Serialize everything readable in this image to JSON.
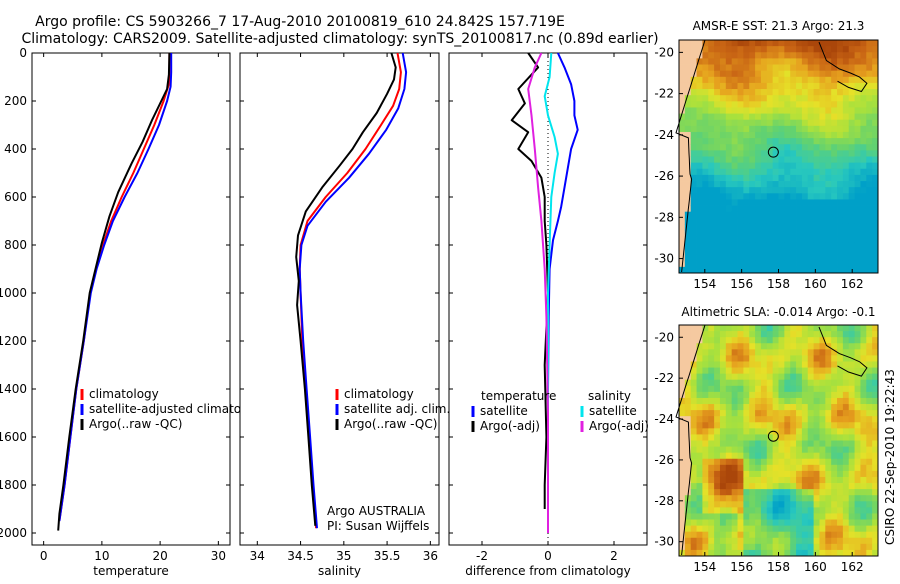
{
  "header": {
    "line1": "Argo profile: CS 5903266_7 17-Aug-2010 20100819_610 24.842S 157.719E",
    "line2": "Climatology: CARS2009. Satellite-adjusted climatology: synTS_20100817.nc (0.89d earlier)"
  },
  "side_label": "CSIRO  22-Sep-2010 19:22:43",
  "chart_data": [
    {
      "id": "temperature",
      "type": "line",
      "xlabel": "temperature",
      "xlim": [
        -2,
        32
      ],
      "ylim": [
        2050,
        0
      ],
      "xticks": [
        0,
        10,
        20,
        30
      ],
      "yticks": [
        0,
        200,
        400,
        600,
        800,
        1000,
        1200,
        1400,
        1600,
        1800,
        2000
      ],
      "legend": {
        "position": "lower-left",
        "entries": [
          {
            "label": "climatology",
            "color": "#ff0000"
          },
          {
            "label": "satellite-adjusted climatology",
            "color": "#0000ff"
          },
          {
            "label": "Argo(..raw -QC)",
            "color": "#000000"
          }
        ]
      },
      "series": [
        {
          "name": "climatology",
          "color": "#ff0000",
          "width": 2,
          "points": [
            [
              21.6,
              0
            ],
            [
              21.6,
              80
            ],
            [
              21.5,
              130
            ],
            [
              20.6,
              200
            ],
            [
              19.0,
              300
            ],
            [
              17.2,
              400
            ],
            [
              15.4,
              500
            ],
            [
              13.4,
              600
            ],
            [
              11.6,
              700
            ],
            [
              10.2,
              800
            ],
            [
              9.0,
              900
            ],
            [
              8.0,
              1000
            ],
            [
              6.9,
              1200
            ],
            [
              5.6,
              1400
            ],
            [
              4.6,
              1600
            ],
            [
              3.6,
              1800
            ],
            [
              2.7,
              1950
            ]
          ]
        },
        {
          "name": "satellite-adjusted climatology",
          "color": "#0000ff",
          "width": 2,
          "points": [
            [
              21.9,
              0
            ],
            [
              21.9,
              80
            ],
            [
              21.8,
              140
            ],
            [
              21.2,
              200
            ],
            [
              19.8,
              300
            ],
            [
              18.0,
              400
            ],
            [
              16.1,
              500
            ],
            [
              13.9,
              600
            ],
            [
              11.9,
              700
            ],
            [
              10.4,
              800
            ],
            [
              9.1,
              900
            ],
            [
              8.1,
              1000
            ],
            [
              6.9,
              1200
            ],
            [
              5.6,
              1400
            ],
            [
              4.6,
              1600
            ],
            [
              3.6,
              1800
            ],
            [
              2.7,
              1950
            ]
          ]
        },
        {
          "name": "Argo(..raw -QC)",
          "color": "#000000",
          "width": 2,
          "points": [
            [
              21.6,
              0
            ],
            [
              21.5,
              90
            ],
            [
              21.2,
              150
            ],
            [
              20.2,
              200
            ],
            [
              18.6,
              280
            ],
            [
              17.0,
              370
            ],
            [
              15.1,
              460
            ],
            [
              12.8,
              580
            ],
            [
              11.3,
              680
            ],
            [
              10.0,
              790
            ],
            [
              8.9,
              900
            ],
            [
              7.9,
              1000
            ],
            [
              6.8,
              1200
            ],
            [
              5.5,
              1400
            ],
            [
              4.4,
              1600
            ],
            [
              3.4,
              1800
            ],
            [
              2.7,
              1920
            ],
            [
              2.5,
              1990
            ]
          ]
        }
      ]
    },
    {
      "id": "salinity",
      "type": "line",
      "xlabel": "salinity",
      "xlim": [
        33.8,
        36.1
      ],
      "ylim": [
        2050,
        0
      ],
      "xticks": [
        34,
        34.5,
        35,
        35.5,
        36
      ],
      "yticks": [
        0,
        200,
        400,
        600,
        800,
        1000,
        1200,
        1400,
        1600,
        1800,
        2000
      ],
      "legend": {
        "position": "lower-right",
        "entries": [
          {
            "label": "climatology",
            "color": "#ff0000"
          },
          {
            "label": "satellite adj. clim.",
            "color": "#0000ff"
          },
          {
            "label": "Argo(..raw -QC)",
            "color": "#000000"
          }
        ]
      },
      "annotations": [
        "Argo AUSTRALIA",
        "PI: Susan Wijffels"
      ],
      "series": [
        {
          "name": "climatology",
          "color": "#ff0000",
          "width": 2,
          "points": [
            [
              35.62,
              0
            ],
            [
              35.66,
              80
            ],
            [
              35.64,
              150
            ],
            [
              35.57,
              220
            ],
            [
              35.43,
              300
            ],
            [
              35.25,
              400
            ],
            [
              35.04,
              500
            ],
            [
              34.79,
              600
            ],
            [
              34.58,
              700
            ],
            [
              34.5,
              800
            ],
            [
              34.49,
              900
            ],
            [
              34.5,
              1000
            ],
            [
              34.52,
              1200
            ],
            [
              34.56,
              1400
            ],
            [
              34.6,
              1600
            ],
            [
              34.64,
              1800
            ],
            [
              34.68,
              1980
            ]
          ]
        },
        {
          "name": "satellite adj. clim.",
          "color": "#0000ff",
          "width": 2,
          "points": [
            [
              35.68,
              0
            ],
            [
              35.72,
              80
            ],
            [
              35.7,
              150
            ],
            [
              35.63,
              230
            ],
            [
              35.49,
              320
            ],
            [
              35.29,
              420
            ],
            [
              35.06,
              520
            ],
            [
              34.79,
              620
            ],
            [
              34.58,
              720
            ],
            [
              34.51,
              800
            ],
            [
              34.49,
              900
            ],
            [
              34.5,
              1000
            ],
            [
              34.53,
              1200
            ],
            [
              34.57,
              1400
            ],
            [
              34.61,
              1600
            ],
            [
              34.65,
              1800
            ],
            [
              34.69,
              1980
            ]
          ]
        },
        {
          "name": "Argo(..raw -QC)",
          "color": "#000000",
          "width": 2,
          "points": [
            [
              35.55,
              0
            ],
            [
              35.6,
              60
            ],
            [
              35.58,
              110
            ],
            [
              35.5,
              170
            ],
            [
              35.38,
              250
            ],
            [
              35.22,
              330
            ],
            [
              35.1,
              400
            ],
            [
              34.95,
              470
            ],
            [
              34.75,
              560
            ],
            [
              34.56,
              660
            ],
            [
              34.47,
              760
            ],
            [
              34.45,
              850
            ],
            [
              34.48,
              950
            ],
            [
              34.46,
              1050
            ],
            [
              34.5,
              1200
            ],
            [
              34.55,
              1400
            ],
            [
              34.59,
              1600
            ],
            [
              34.63,
              1800
            ],
            [
              34.67,
              1970
            ]
          ]
        }
      ]
    },
    {
      "id": "difference",
      "type": "line",
      "xlabel": "difference from climatology",
      "xlim": [
        -3,
        3
      ],
      "ylim": [
        2050,
        0
      ],
      "xticks": [
        -2,
        0,
        2
      ],
      "yticks": [
        0,
        200,
        400,
        600,
        800,
        1000,
        1200,
        1400,
        1600,
        1800,
        2000
      ],
      "legend": {
        "position": "lower",
        "columns": [
          {
            "title": "temperature",
            "entries": [
              {
                "label": "satellite",
                "color": "#0000ff"
              },
              {
                "label": "Argo(-adj)",
                "color": "#000000"
              }
            ]
          },
          {
            "title": "salinity",
            "entries": [
              {
                "label": "satellite",
                "color": "#00e5ee"
              },
              {
                "label": "Argo(-adj)",
                "color": "#e020e0"
              }
            ]
          }
        ]
      },
      "series": [
        {
          "name": "temperature satellite",
          "color": "#0000ff",
          "width": 2,
          "points": [
            [
              0.3,
              0
            ],
            [
              0.5,
              60
            ],
            [
              0.7,
              130
            ],
            [
              0.8,
              200
            ],
            [
              0.8,
              260
            ],
            [
              0.9,
              320
            ],
            [
              0.7,
              400
            ],
            [
              0.6,
              480
            ],
            [
              0.5,
              560
            ],
            [
              0.4,
              640
            ],
            [
              0.3,
              700
            ],
            [
              0.15,
              780
            ],
            [
              0.05,
              900
            ],
            [
              0.02,
              1100
            ],
            [
              0.0,
              1400
            ],
            [
              0.0,
              2000
            ]
          ]
        },
        {
          "name": "temperature Argo(-adj)",
          "color": "#000000",
          "width": 2,
          "points": [
            [
              -0.6,
              0
            ],
            [
              -0.3,
              60
            ],
            [
              -0.9,
              150
            ],
            [
              -0.7,
              210
            ],
            [
              -1.1,
              280
            ],
            [
              -0.6,
              330
            ],
            [
              -0.9,
              400
            ],
            [
              -0.5,
              450
            ],
            [
              -0.2,
              520
            ],
            [
              -0.1,
              600
            ],
            [
              -0.1,
              700
            ],
            [
              -0.05,
              800
            ],
            [
              0.0,
              1000
            ],
            [
              -0.1,
              1300
            ],
            [
              -0.05,
              1600
            ],
            [
              -0.1,
              1800
            ],
            [
              -0.1,
              1900
            ]
          ]
        },
        {
          "name": "salinity satellite",
          "color": "#00e5ee",
          "width": 2,
          "points": [
            [
              0.1,
              0
            ],
            [
              0.05,
              100
            ],
            [
              -0.1,
              180
            ],
            [
              0.0,
              260
            ],
            [
              0.2,
              350
            ],
            [
              0.3,
              420
            ],
            [
              0.2,
              500
            ],
            [
              0.1,
              600
            ],
            [
              0.05,
              800
            ],
            [
              0.0,
              1000
            ],
            [
              0.0,
              2000
            ]
          ]
        },
        {
          "name": "salinity Argo(-adj)",
          "color": "#e020e0",
          "width": 2,
          "points": [
            [
              -0.2,
              0
            ],
            [
              -0.4,
              60
            ],
            [
              -0.6,
              150
            ],
            [
              -0.5,
              260
            ],
            [
              -0.4,
              400
            ],
            [
              -0.3,
              560
            ],
            [
              -0.2,
              700
            ],
            [
              -0.1,
              900
            ],
            [
              -0.05,
              1100
            ],
            [
              0.0,
              1500
            ],
            [
              0.0,
              2000
            ]
          ]
        }
      ]
    },
    {
      "id": "sst_map",
      "type": "heatmap",
      "title": "AMSR-E SST: 21.3  Argo: 21.3",
      "xlim": [
        152.6,
        163.4
      ],
      "ylim": [
        -30.7,
        -19.4
      ],
      "xticks": [
        154,
        156,
        158,
        160,
        162
      ],
      "yticks": [
        -20,
        -22,
        -24,
        -26,
        -28,
        -30
      ],
      "marker": {
        "lon": 157.72,
        "lat": -24.84
      }
    },
    {
      "id": "sla_map",
      "type": "heatmap",
      "title": "Altimetric SLA: -0.014  Argo: -0.1",
      "xlim": [
        152.6,
        163.4
      ],
      "ylim": [
        -30.7,
        -19.4
      ],
      "xticks": [
        154,
        156,
        158,
        160,
        162
      ],
      "yticks": [
        -20,
        -22,
        -24,
        -26,
        -28,
        -30
      ],
      "marker": {
        "lon": 157.72,
        "lat": -24.84
      }
    }
  ]
}
